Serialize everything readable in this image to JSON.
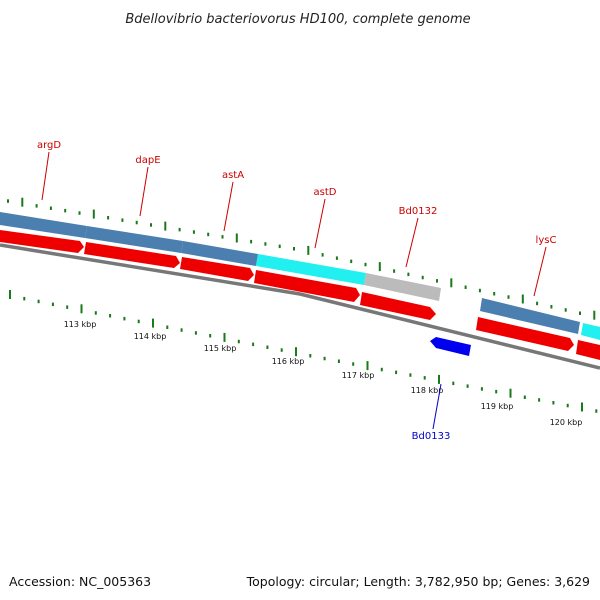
{
  "title": "Bdellovibrio bacteriovorus HD100, complete genome",
  "footer": {
    "accession": "Accession: NC_005363",
    "summary": "Topology: circular; Length: 3,782,950 bp; Genes: 3,629"
  },
  "colors": {
    "forward_label": "#cc0000",
    "reverse_label": "#0000cc",
    "tick": "#1a7a1a",
    "backbone": "#777777",
    "cds": "#ee0000",
    "cog_blue": "#4a7fb0",
    "cog_cyan": "#22f0f0",
    "cog_gray": "#bbbbbb",
    "reverse_cds": "#0000ee"
  },
  "scale_labels": [
    "113 kbp",
    "114 kbp",
    "115 kbp",
    "116 kbp",
    "117 kbp",
    "118 kbp",
    "119 kbp",
    "120 kbp"
  ],
  "forward_genes": [
    {
      "name": "argD",
      "cog": "cog_blue"
    },
    {
      "name": "dapE",
      "cog": "cog_blue"
    },
    {
      "name": "astA",
      "cog": "cog_blue"
    },
    {
      "name": "astD",
      "cog": "cog_cyan"
    },
    {
      "name": "Bd0132",
      "cog": "cog_gray"
    },
    {
      "name": "lysC",
      "cog": "cog_blue"
    }
  ],
  "reverse_genes": [
    {
      "name": "Bd0133"
    }
  ]
}
